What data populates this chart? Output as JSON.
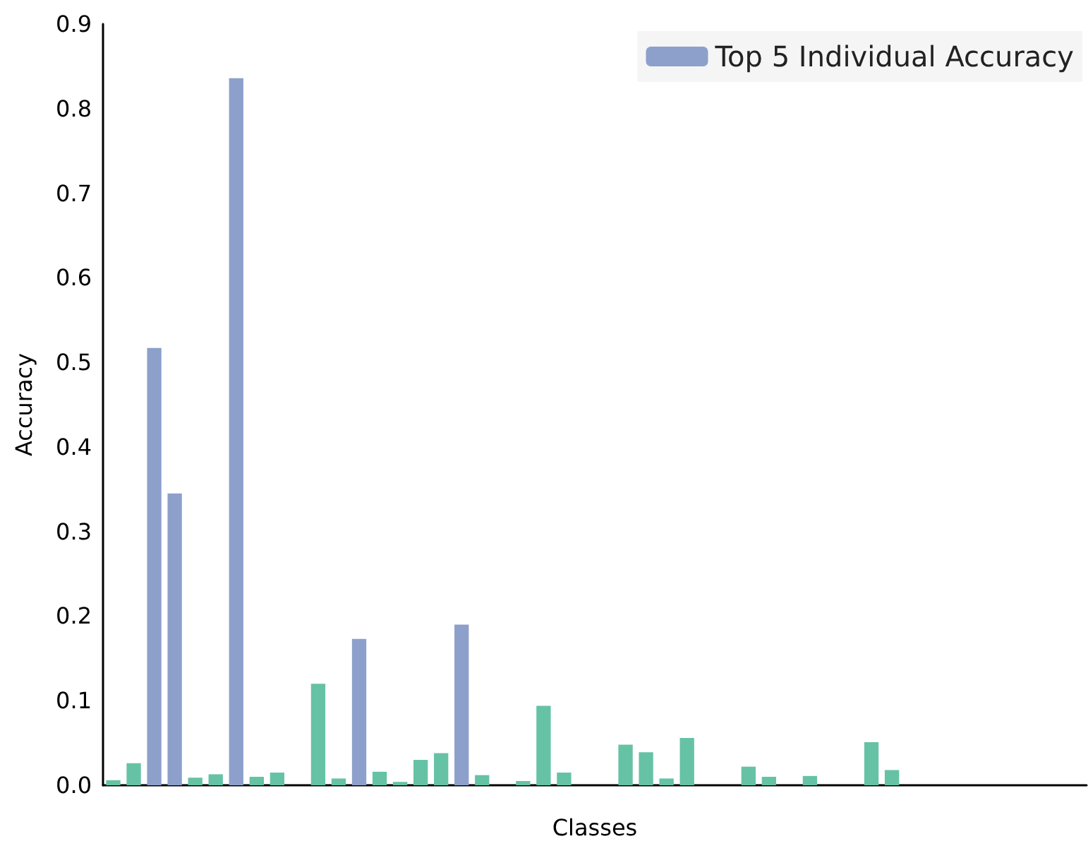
{
  "chart_data": {
    "type": "bar",
    "xlabel": "Classes",
    "ylabel": "Accuracy",
    "categories": [
      null,
      null,
      null,
      null,
      null,
      null,
      null,
      null,
      null,
      null,
      null,
      null,
      null,
      null,
      null,
      null,
      null,
      null,
      null,
      null,
      null,
      null,
      null,
      null,
      null,
      null,
      null,
      null,
      null,
      null,
      null,
      null,
      null,
      null,
      null,
      null,
      null,
      null,
      null,
      null,
      null,
      null,
      null,
      null,
      null,
      null,
      null,
      null
    ],
    "stacked": true,
    "series": [
      {
        "name": "Top 5 Individual Accuracy",
        "color": "#8da0cb",
        "values": [
          null,
          null,
          0.517,
          0.345,
          null,
          null,
          0.836,
          null,
          null,
          null,
          null,
          null,
          0.173,
          null,
          null,
          null,
          null,
          0.19,
          null,
          null,
          null,
          null,
          null,
          null,
          null,
          null,
          null,
          null,
          null,
          null,
          null,
          null,
          null,
          null,
          null,
          null,
          null,
          null,
          null,
          null,
          null,
          null,
          null,
          null,
          null,
          null,
          null,
          null
        ]
      },
      {
        "color": "#66c2a5",
        "values": [
          0.006,
          0.026,
          null,
          null,
          0.009,
          0.013,
          null,
          0.01,
          0.015,
          null,
          0.12,
          0.008,
          null,
          0.016,
          0.004,
          0.03,
          0.038,
          null,
          0.012,
          null,
          0.005,
          0.094,
          0.015,
          null,
          null,
          0.048,
          0.039,
          0.008,
          0.056,
          null,
          null,
          0.022,
          0.01,
          null,
          0.011,
          null,
          null,
          0.051,
          0.018,
          null,
          null,
          null,
          null,
          null,
          null,
          null,
          null,
          null
        ]
      }
    ],
    "ylim": [
      0,
      0.9
    ],
    "yticks": [
      {
        "value": 0,
        "label": "0.0"
      },
      0.1,
      0.2,
      0.3,
      0.4,
      0.5,
      0.6,
      0.7,
      0.8,
      0.9
    ],
    "tick_labels": "y",
    "grid": false,
    "legend": "top right"
  }
}
